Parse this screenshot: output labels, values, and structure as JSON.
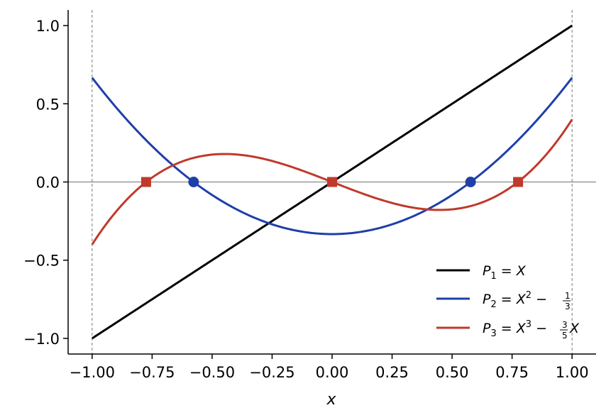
{
  "chart_data": {
    "type": "line",
    "xlabel": "x",
    "ylabel": "",
    "title": "",
    "xlim": [
      -1.1,
      1.1
    ],
    "ylim": [
      -1.1,
      1.1
    ],
    "xticks": [
      -1.0,
      -0.75,
      -0.5,
      -0.25,
      0.0,
      0.25,
      0.5,
      0.75,
      1.0
    ],
    "xtick_labels": [
      "−1.00",
      "−0.75",
      "−0.50",
      "−0.25",
      "0.00",
      "0.25",
      "0.50",
      "0.75",
      "1.00"
    ],
    "yticks": [
      -1.0,
      -0.5,
      0.0,
      0.5,
      1.0
    ],
    "ytick_labels": [
      "−1.0",
      "−0.5",
      "0.0",
      "0.5",
      "1.0"
    ],
    "grid": false,
    "legend_position": "lower-right",
    "reference_lines": {
      "horizontal": [
        0.0
      ],
      "vertical": [
        -1.0,
        1.0
      ]
    },
    "series": [
      {
        "name": "P1 = X",
        "expression": "x",
        "color": "#000000",
        "domain": [
          -1.0,
          1.0
        ],
        "sample_x": [
          -1.0,
          -0.5,
          0.0,
          0.5,
          1.0
        ],
        "sample_y": [
          -1.0,
          -0.5,
          0.0,
          0.5,
          1.0
        ],
        "roots": [],
        "root_marker": "none"
      },
      {
        "name": "P2 = X^2 − 1/3",
        "expression": "x^2 - 1/3",
        "color": "#1f3fa8",
        "domain": [
          -1.0,
          1.0
        ],
        "sample_x": [
          -1.0,
          -0.5,
          0.0,
          0.5,
          1.0
        ],
        "sample_y": [
          0.667,
          -0.083,
          -0.333,
          -0.083,
          0.667
        ],
        "roots": [
          -0.577,
          0.577
        ],
        "root_marker": "circle"
      },
      {
        "name": "P3 = X^3 − (3/5)X",
        "expression": "x^3 - 0.6x",
        "color": "#c0392b",
        "domain": [
          -1.0,
          1.0
        ],
        "sample_x": [
          -1.0,
          -0.447,
          0.0,
          0.447,
          1.0
        ],
        "sample_y": [
          -0.4,
          0.179,
          0.0,
          -0.179,
          0.4
        ],
        "roots": [
          -0.775,
          0.0,
          0.775
        ],
        "root_marker": "square"
      }
    ]
  }
}
